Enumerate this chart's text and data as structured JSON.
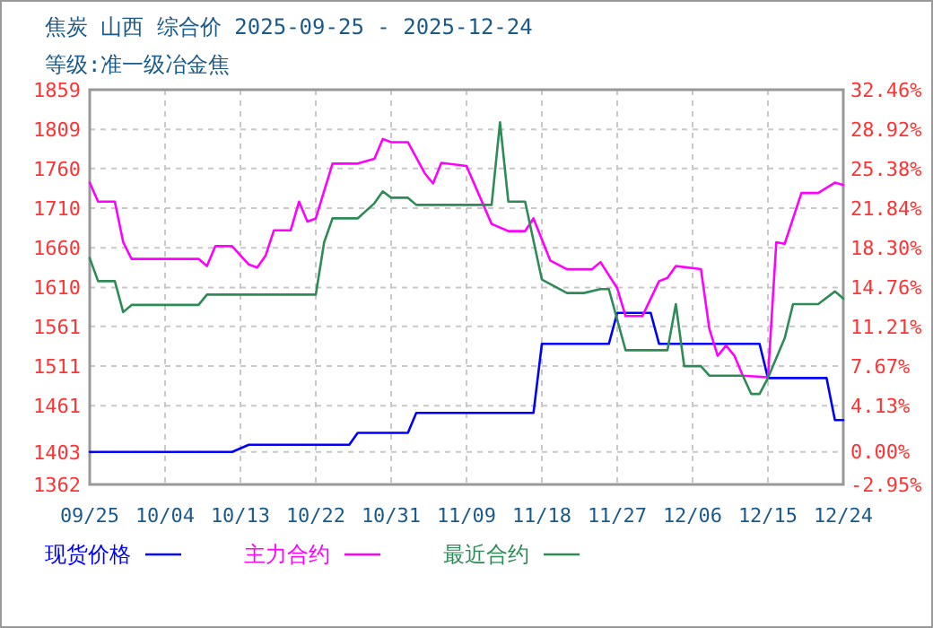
{
  "chart_data": {
    "type": "line",
    "title": "焦炭 山西 综合价 2025-09-25 - 2025-12-24",
    "subtitle": "等级:准一级冶金焦",
    "xlim": [
      "2025-09-25",
      "2025-12-24"
    ],
    "xticks": [
      {
        "value": "2025-09-25",
        "label": "09/25"
      },
      {
        "value": "2025-10-04",
        "label": "10/04"
      },
      {
        "value": "2025-10-13",
        "label": "10/13"
      },
      {
        "value": "2025-10-22",
        "label": "10/22"
      },
      {
        "value": "2025-10-31",
        "label": "10/31"
      },
      {
        "value": "2025-11-09",
        "label": "11/09"
      },
      {
        "value": "2025-11-18",
        "label": "11/18"
      },
      {
        "value": "2025-11-27",
        "label": "11/27"
      },
      {
        "value": "2025-12-06",
        "label": "12/06"
      },
      {
        "value": "2025-12-15",
        "label": "12/15"
      },
      {
        "value": "2025-12-24",
        "label": "12/24"
      }
    ],
    "ylim": [
      1362,
      1859
    ],
    "yticks": [
      1362,
      1403,
      1461,
      1511,
      1561,
      1610,
      1660,
      1710,
      1760,
      1809,
      1859
    ],
    "y2lim": [
      -2.95,
      32.46
    ],
    "y2ticks": [
      {
        "value": -2.95,
        "label": "-2.95%"
      },
      {
        "value": 0,
        "label": "0.00%"
      },
      {
        "value": 4.13,
        "label": "4.13%"
      },
      {
        "value": 7.67,
        "label": "7.67%"
      },
      {
        "value": 11.21,
        "label": "11.21%"
      },
      {
        "value": 14.76,
        "label": "14.76%"
      },
      {
        "value": 18.3,
        "label": "18.30%"
      },
      {
        "value": 21.84,
        "label": "21.84%"
      },
      {
        "value": 25.38,
        "label": "25.38%"
      },
      {
        "value": 28.92,
        "label": "28.92%"
      },
      {
        "value": 32.46,
        "label": "32.46%"
      }
    ],
    "grid": true,
    "legend": "bottom",
    "series": [
      {
        "name": "现货价格",
        "color": "#0000ff",
        "x": [
          "2025-09-25",
          "2025-10-12",
          "2025-10-14",
          "2025-10-26",
          "2025-10-27",
          "2025-11-02",
          "2025-11-03",
          "2025-11-17",
          "2025-11-18",
          "2025-11-26",
          "2025-11-27",
          "2025-12-01",
          "2025-12-02",
          "2025-12-14",
          "2025-12-15",
          "2025-12-22",
          "2025-12-23",
          "2025-12-24"
        ],
        "values": [
          1403,
          1403,
          1412,
          1412,
          1427,
          1427,
          1452,
          1452,
          1539,
          1539,
          1578,
          1578,
          1539,
          1539,
          1496,
          1496,
          1443,
          1443
        ]
      },
      {
        "name": "主力合约",
        "color": "#ff00ff",
        "x": [
          "2025-09-25",
          "2025-09-26",
          "2025-09-28",
          "2025-09-29",
          "2025-09-30",
          "2025-10-08",
          "2025-10-09",
          "2025-10-10",
          "2025-10-12",
          "2025-10-14",
          "2025-10-15",
          "2025-10-16",
          "2025-10-17",
          "2025-10-19",
          "2025-10-20",
          "2025-10-21",
          "2025-10-22",
          "2025-10-24",
          "2025-10-27",
          "2025-10-29",
          "2025-10-30",
          "2025-10-31",
          "2025-11-02",
          "2025-11-04",
          "2025-11-05",
          "2025-11-06",
          "2025-11-09",
          "2025-11-12",
          "2025-11-14",
          "2025-11-16",
          "2025-11-17",
          "2025-11-19",
          "2025-11-21",
          "2025-11-24",
          "2025-11-25",
          "2025-11-27",
          "2025-11-28",
          "2025-11-30",
          "2025-12-02",
          "2025-12-03",
          "2025-12-04",
          "2025-12-07",
          "2025-12-08",
          "2025-12-09",
          "2025-12-10",
          "2025-12-11",
          "2025-12-12",
          "2025-12-15",
          "2025-12-16",
          "2025-12-17",
          "2025-12-19",
          "2025-12-21",
          "2025-12-23",
          "2025-12-24"
        ],
        "values": [
          1742,
          1718,
          1718,
          1667,
          1646,
          1646,
          1637,
          1662,
          1662,
          1639,
          1635,
          1650,
          1682,
          1682,
          1718,
          1693,
          1697,
          1766,
          1766,
          1772,
          1797,
          1793,
          1793,
          1754,
          1741,
          1767,
          1763,
          1690,
          1681,
          1681,
          1697,
          1644,
          1633,
          1633,
          1642,
          1609,
          1574,
          1574,
          1618,
          1622,
          1637,
          1633,
          1558,
          1524,
          1537,
          1524,
          1499,
          1497,
          1667,
          1665,
          1729,
          1729,
          1742,
          1739
        ]
      },
      {
        "name": "最近合约",
        "color": "#2e8b57",
        "x": [
          "2025-09-25",
          "2025-09-26",
          "2025-09-28",
          "2025-09-29",
          "2025-09-30",
          "2025-10-08",
          "2025-10-09",
          "2025-10-22",
          "2025-10-23",
          "2025-10-24",
          "2025-10-27",
          "2025-10-29",
          "2025-10-30",
          "2025-10-31",
          "2025-11-02",
          "2025-11-03",
          "2025-11-12",
          "2025-11-13",
          "2025-11-14",
          "2025-11-16",
          "2025-11-18",
          "2025-11-21",
          "2025-11-23",
          "2025-11-25",
          "2025-11-26",
          "2025-11-28",
          "2025-12-03",
          "2025-12-04",
          "2025-12-05",
          "2025-12-07",
          "2025-12-08",
          "2025-12-12",
          "2025-12-13",
          "2025-12-14",
          "2025-12-15",
          "2025-12-17",
          "2025-12-18",
          "2025-12-21",
          "2025-12-23",
          "2025-12-24"
        ],
        "values": [
          1647,
          1618,
          1618,
          1579,
          1588,
          1588,
          1601,
          1601,
          1667,
          1697,
          1697,
          1716,
          1731,
          1723,
          1723,
          1714,
          1714,
          1818,
          1718,
          1718,
          1620,
          1603,
          1603,
          1608,
          1608,
          1531,
          1531,
          1589,
          1511,
          1511,
          1499,
          1499,
          1476,
          1476,
          1496,
          1546,
          1589,
          1589,
          1605,
          1596
        ]
      }
    ]
  }
}
